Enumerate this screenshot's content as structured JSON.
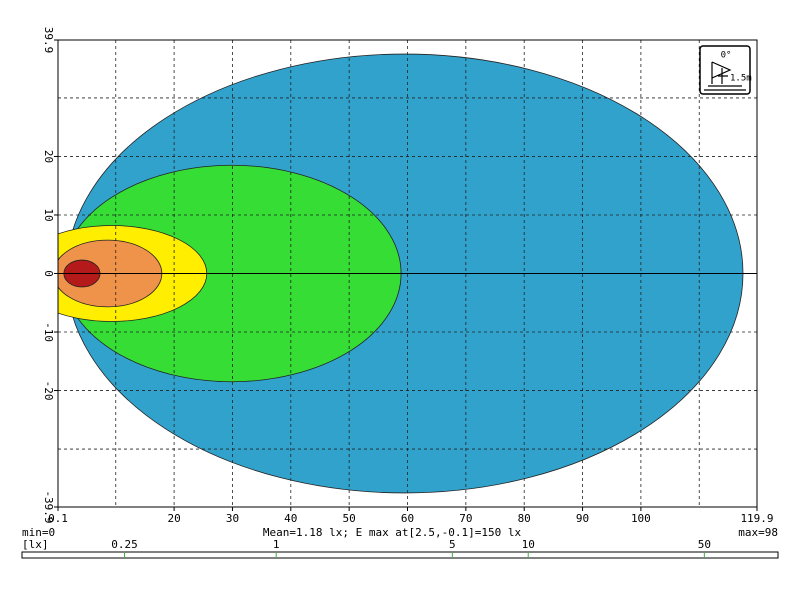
{
  "chart_data": {
    "type": "isolux",
    "xlim": [
      0.1,
      119.9
    ],
    "ylim": [
      -39.9,
      39.9
    ],
    "xticks": [
      {
        "value": 0.1,
        "label": "0.1"
      },
      20,
      30,
      40,
      50,
      60,
      70,
      80,
      90,
      100,
      {
        "value": 119.9,
        "label": "119.9"
      }
    ],
    "yticks": [
      {
        "value": -39.9,
        "label": "-39.9"
      },
      -20,
      -10,
      0,
      10,
      20,
      {
        "value": 39.9,
        "label": "39.9"
      }
    ],
    "xgrid": [
      10,
      20,
      30,
      40,
      50,
      60,
      70,
      80,
      90,
      100,
      110
    ],
    "ygrid": [
      -30,
      -20,
      -10,
      0,
      10,
      20,
      30
    ],
    "contours": [
      {
        "color": "#31a2cc",
        "center": 59.5,
        "semi_x": 58,
        "semi_y": 37.5
      },
      {
        "color": "#35dd35",
        "center": 29.9,
        "semi_x": 29,
        "semi_y": 18.5
      },
      {
        "color": "#ffee00",
        "center": 9.3,
        "semi_x": 16.3,
        "semi_y": 8.2
      },
      {
        "color": "#f0934a",
        "center": 8.6,
        "semi_x": 9.3,
        "semi_y": 5.7
      },
      {
        "color": "#b51a1a",
        "center": 4.2,
        "semi_x": 3.1,
        "semi_y": 2.3
      }
    ],
    "min_text": "min=0",
    "stats_text": "Mean=1.18 lx; E max at[2.5,-0.1]=150 lx",
    "max_text": "max=98",
    "unit": "[lx]",
    "scale": {
      "log": true,
      "lim": [
        0.098,
        98
      ],
      "ticks": [
        0.25,
        1,
        5,
        10,
        50
      ]
    },
    "icon": {
      "angle": "0°",
      "height": "1.5m"
    }
  }
}
